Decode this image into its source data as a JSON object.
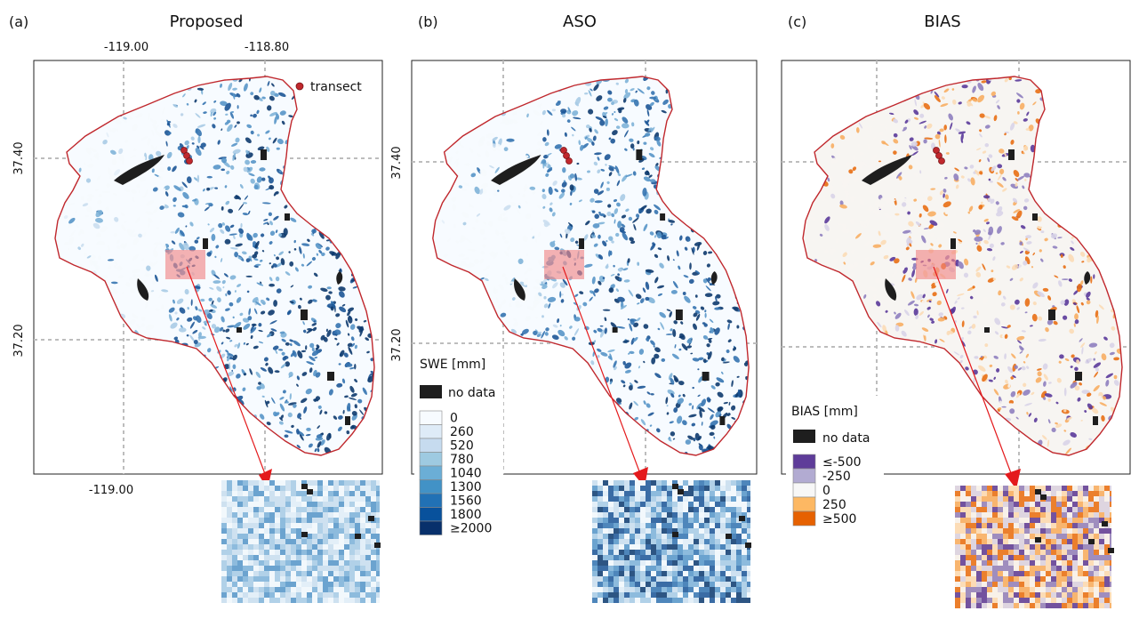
{
  "panels": [
    {
      "letter": "(a)",
      "title": "Proposed",
      "top_ticks": [
        "-119.00",
        "-118.80"
      ],
      "bottom_ticks": [
        "-119.00"
      ],
      "left_ticks": [
        "37.40",
        "37.20"
      ],
      "legend_item": "transect",
      "palette": [
        "#f5f9fd",
        "#e3eef8",
        "#cadeef",
        "#a8cbe5",
        "#7eb2d8",
        "#5695c8",
        "#3473b0",
        "#1c5596",
        "#0d3a6e"
      ]
    },
    {
      "letter": "(b)",
      "title": "ASO",
      "left_ticks": [
        "37.40",
        "37.20"
      ],
      "palette": [
        "#f5f9fd",
        "#e3eef8",
        "#cadeef",
        "#a8cbe5",
        "#7eb2d8",
        "#5695c8",
        "#3473b0",
        "#1c5596",
        "#0d3a6e"
      ]
    },
    {
      "letter": "(c)",
      "title": "BIAS",
      "palette": [
        "#f7f5f2",
        "#d8d4e8",
        "#8e7fbf",
        "#5a3a9a",
        "#fbdcb6",
        "#f7ae63",
        "#e86f14"
      ]
    }
  ],
  "swe_legend": {
    "title": "SWE [mm]",
    "nodata": "no data",
    "labels": [
      "0",
      "260",
      "520",
      "780",
      "1040",
      "1300",
      "1560",
      "1800",
      "≥2000"
    ],
    "colors": [
      "#f7fbff",
      "#deebf7",
      "#c6dbef",
      "#9ecae1",
      "#6baed6",
      "#4292c6",
      "#2171b5",
      "#08519c",
      "#08306b"
    ]
  },
  "bias_legend": {
    "title": "BIAS [mm]",
    "nodata": "no data",
    "labels": [
      "≤-500",
      "-250",
      "0",
      "250",
      "≥500"
    ],
    "colors": [
      "#5e3c99",
      "#b2abd2",
      "#f7f7f7",
      "#fdb863",
      "#e66101"
    ]
  },
  "colors": {
    "boundary": "#c0282d",
    "nodata": "#1e1e1e",
    "transect": "#c0282d",
    "arrow": "#e41a1c",
    "highlight": "#f08080",
    "graticule": "#bdbdbd"
  }
}
